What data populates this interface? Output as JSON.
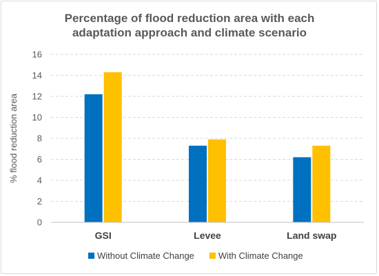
{
  "chart_data": {
    "type": "bar",
    "title_line1": "Percentage of flood reduction area with each",
    "title_line2": "adaptation approach and climate scenario",
    "xlabel": "",
    "ylabel": "% flood reduction area",
    "ylim": [
      0,
      16
    ],
    "yticks": [
      0,
      2,
      4,
      6,
      8,
      10,
      12,
      14,
      16
    ],
    "grid": true,
    "legend_position": "bottom",
    "categories": [
      "GSI",
      "Levee",
      "Land swap"
    ],
    "series": [
      {
        "name": "Without Climate Change",
        "color": "#0070c0",
        "values": [
          12.2,
          7.3,
          6.2
        ]
      },
      {
        "name": "With Climate Change",
        "color": "#ffc000",
        "values": [
          14.3,
          7.9,
          7.3
        ]
      }
    ]
  }
}
